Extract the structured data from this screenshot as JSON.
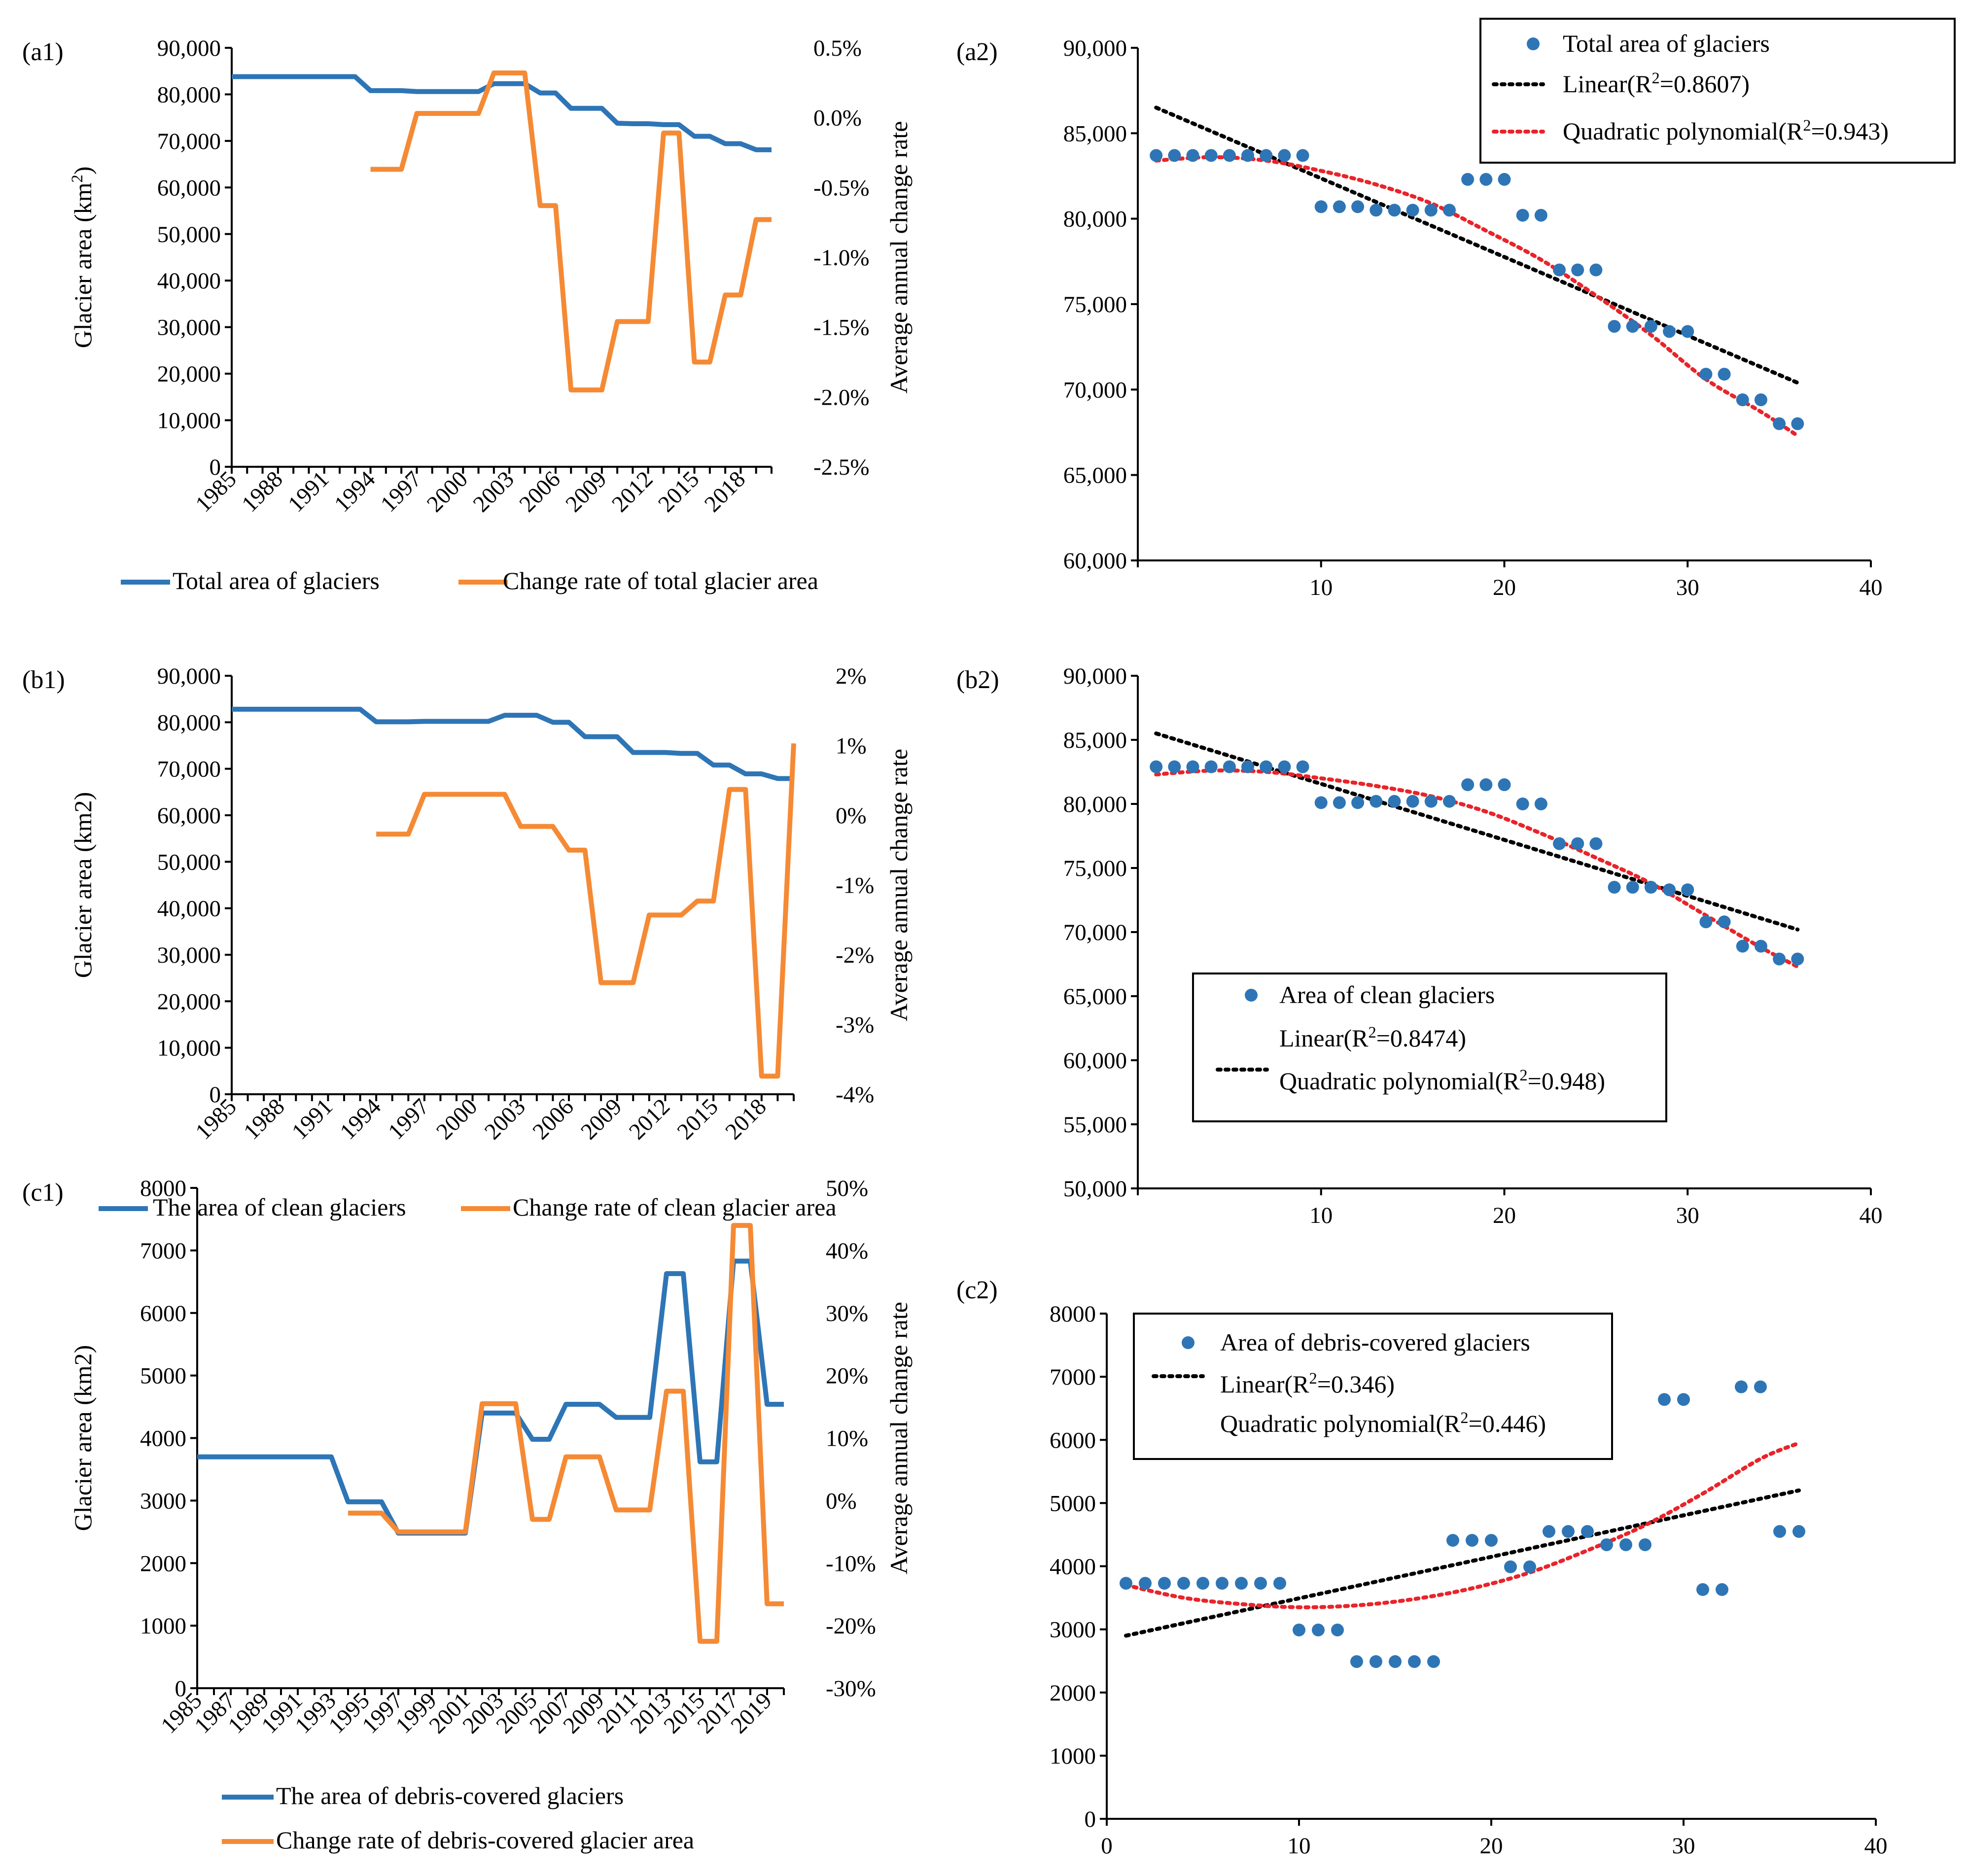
{
  "colors": {
    "blue": "#2e75b6",
    "orange": "#f58a35",
    "red": "#e8242a",
    "black": "#000000",
    "marker": "#2e75b6"
  },
  "chart_data": [
    {
      "id": "a1",
      "type": "line",
      "panel_label": "(a1)",
      "ylabel": "Glacier area (km²)",
      "y2label": "Average annual change rate",
      "ylim": [
        0,
        90000
      ],
      "y2lim": [
        -2.5,
        0.5
      ],
      "yticks": [
        "0",
        "10,000",
        "20,000",
        "30,000",
        "40,000",
        "50,000",
        "60,000",
        "70,000",
        "80,000",
        "90,000"
      ],
      "y2ticks": [
        "-2.5%",
        "-2.0%",
        "-1.5%",
        "-1.0%",
        "-0.5%",
        "0.0%",
        "0.5%"
      ],
      "xlim": [
        1985,
        2020
      ],
      "xticks": [
        "1985",
        "1988",
        "1991",
        "1994",
        "1997",
        "2000",
        "2003",
        "2006",
        "2009",
        "2012",
        "2015",
        "2018"
      ],
      "series": [
        {
          "name": "Total area of glaciers",
          "color": "blue",
          "axis": "y",
          "x": [
            1985,
            1986,
            1987,
            1988,
            1989,
            1990,
            1991,
            1992,
            1993,
            1994,
            1995,
            1996,
            1997,
            1998,
            1999,
            2000,
            2001,
            2002,
            2003,
            2004,
            2005,
            2006,
            2007,
            2008,
            2009,
            2010,
            2011,
            2012,
            2013,
            2014,
            2015,
            2016,
            2017,
            2018,
            2019,
            2020
          ],
          "values": [
            83800,
            83800,
            83800,
            83800,
            83800,
            83800,
            83800,
            83800,
            83800,
            80800,
            80800,
            80800,
            80600,
            80600,
            80600,
            80600,
            80600,
            82300,
            82300,
            82300,
            80300,
            80300,
            77000,
            77000,
            77000,
            73800,
            73700,
            73700,
            73500,
            73500,
            71000,
            71000,
            69400,
            69400,
            68100,
            68100
          ]
        },
        {
          "name": "Change rate of total glacier area",
          "color": "orange",
          "axis": "y2",
          "x": [
            1994,
            1995,
            1996,
            1997,
            1998,
            1999,
            2000,
            2001,
            2002,
            2003,
            2004,
            2005,
            2006,
            2007,
            2008,
            2009,
            2010,
            2011,
            2012,
            2013,
            2014,
            2015,
            2016,
            2017,
            2018,
            2019,
            2020
          ],
          "values": [
            -0.37,
            -0.37,
            -0.37,
            0.03,
            0.03,
            0.03,
            0.03,
            0.03,
            0.32,
            0.32,
            0.32,
            -0.63,
            -0.63,
            -1.95,
            -1.95,
            -1.95,
            -1.46,
            -1.46,
            -1.46,
            -0.11,
            -0.11,
            -1.75,
            -1.75,
            -1.27,
            -1.27,
            -0.73,
            -0.73
          ]
        }
      ],
      "legend": {
        "position": "bottom",
        "items": [
          "Total area of glaciers",
          "Change rate of total glacier area"
        ]
      }
    },
    {
      "id": "a2",
      "type": "scatter",
      "panel_label": "(a2)",
      "ylim": [
        60000,
        90000
      ],
      "yticks": [
        "60,000",
        "65,000",
        "70,000",
        "75,000",
        "80,000",
        "85,000",
        "90,000"
      ],
      "xlim": [
        0,
        40
      ],
      "xticks": [
        "10",
        "20",
        "30",
        "40"
      ],
      "points": {
        "name": "Total area of glaciers",
        "x": [
          1,
          2,
          3,
          4,
          5,
          6,
          7,
          8,
          9,
          10,
          11,
          12,
          13,
          14,
          15,
          16,
          17,
          18,
          19,
          20,
          21,
          22,
          23,
          24,
          25,
          26,
          27,
          28,
          29,
          30,
          31,
          32,
          33,
          34,
          35,
          36
        ],
        "y": [
          83700,
          83700,
          83700,
          83700,
          83700,
          83700,
          83700,
          83700,
          83700,
          80700,
          80700,
          80700,
          80500,
          80500,
          80500,
          80500,
          80500,
          82300,
          82300,
          82300,
          80200,
          80200,
          77000,
          77000,
          77000,
          73700,
          73700,
          73700,
          73400,
          73400,
          70900,
          70900,
          69400,
          69400,
          68000,
          68000
        ]
      },
      "linear": {
        "label": "Linear(R²=0.8607)",
        "x": [
          1,
          36
        ],
        "y": [
          86500,
          70400
        ]
      },
      "quadratic": {
        "label": "Quadratic polynomial(R²=0.943)",
        "x": [
          1,
          4,
          7,
          10,
          13,
          16,
          19,
          22,
          25,
          28,
          31,
          34,
          36
        ],
        "y": [
          83400,
          83600,
          83400,
          82800,
          82000,
          80900,
          79300,
          77600,
          75500,
          73200,
          70600,
          68700,
          67300
        ]
      },
      "legend": {
        "position": "top-right",
        "items": [
          "Total area of glaciers",
          "Linear(R²=0.8607)",
          "Quadratic polynomial(R²=0.943)"
        ]
      }
    },
    {
      "id": "b1",
      "type": "line",
      "panel_label": "(b1)",
      "ylabel": "Glacier area (km2)",
      "y2label": "Average annual change rate",
      "ylim": [
        0,
        90000
      ],
      "y2lim": [
        -4,
        2
      ],
      "yticks": [
        "0",
        "10,000",
        "20,000",
        "30,000",
        "40,000",
        "50,000",
        "60,000",
        "70,000",
        "80,000",
        "90,000"
      ],
      "y2ticks": [
        "-4%",
        "-3%",
        "-2%",
        "-1%",
        "0%",
        "1%",
        "2%"
      ],
      "xlim": [
        1985,
        2020
      ],
      "xticks": [
        "1985",
        "1988",
        "1991",
        "1994",
        "1997",
        "2000",
        "2003",
        "2006",
        "2009",
        "2012",
        "2015",
        "2018"
      ],
      "series": [
        {
          "name": "The area of clean glaciers",
          "color": "blue",
          "axis": "y",
          "x": [
            1985,
            1986,
            1987,
            1988,
            1989,
            1990,
            1991,
            1992,
            1993,
            1994,
            1995,
            1996,
            1997,
            1998,
            1999,
            2000,
            2001,
            2002,
            2003,
            2004,
            2005,
            2006,
            2007,
            2008,
            2009,
            2010,
            2011,
            2012,
            2013,
            2014,
            2015,
            2016,
            2017,
            2018,
            2019,
            2020
          ],
          "values": [
            82800,
            82800,
            82800,
            82800,
            82800,
            82800,
            82800,
            82800,
            82800,
            80100,
            80100,
            80100,
            80200,
            80200,
            80200,
            80200,
            80200,
            81500,
            81500,
            81500,
            80000,
            80000,
            76900,
            76900,
            76900,
            73500,
            73500,
            73500,
            73300,
            73300,
            70800,
            70800,
            68900,
            68900,
            67900,
            67900
          ]
        },
        {
          "name": "Change rate of clean glacier area",
          "color": "orange",
          "axis": "y2",
          "x": [
            1994,
            1995,
            1996,
            1997,
            1998,
            1999,
            2000,
            2001,
            2002,
            2003,
            2004,
            2005,
            2006,
            2007,
            2008,
            2009,
            2010,
            2011,
            2012,
            2013,
            2014,
            2015,
            2016,
            2017,
            2018,
            2019,
            2020
          ],
          "values": [
            -0.27,
            -0.27,
            -0.27,
            0.3,
            0.3,
            0.3,
            0.3,
            0.3,
            0.3,
            -0.16,
            -0.16,
            -0.16,
            -0.5,
            -0.5,
            -2.4,
            -2.4,
            -2.4,
            -1.43,
            -1.43,
            -1.43,
            -1.23,
            -1.23,
            0.37,
            0.37,
            -3.74,
            -3.74,
            1.03
          ]
        }
      ],
      "legend": {
        "position": "bottom",
        "items": [
          "The area of clean glaciers",
          "Change rate of clean glacier area"
        ]
      }
    },
    {
      "id": "b2",
      "type": "scatter",
      "panel_label": "(b2)",
      "ylim": [
        50000,
        90000
      ],
      "yticks": [
        "50,000",
        "55,000",
        "60,000",
        "65,000",
        "70,000",
        "75,000",
        "80,000",
        "85,000",
        "90,000"
      ],
      "xlim": [
        0,
        40
      ],
      "xticks": [
        "10",
        "20",
        "30",
        "40"
      ],
      "points": {
        "name": "Area of clean glaciers",
        "x": [
          1,
          2,
          3,
          4,
          5,
          6,
          7,
          8,
          9,
          10,
          11,
          12,
          13,
          14,
          15,
          16,
          17,
          18,
          19,
          20,
          21,
          22,
          23,
          24,
          25,
          26,
          27,
          28,
          29,
          30,
          31,
          32,
          33,
          34,
          35,
          36
        ],
        "y": [
          82900,
          82900,
          82900,
          82900,
          82900,
          82900,
          82900,
          82900,
          82900,
          80100,
          80100,
          80100,
          80200,
          80200,
          80200,
          80200,
          80200,
          81500,
          81500,
          81500,
          80000,
          80000,
          76900,
          76900,
          76900,
          73500,
          73500,
          73500,
          73300,
          73300,
          70800,
          70800,
          68900,
          68900,
          67900,
          67900
        ]
      },
      "linear": {
        "label": "Linear(R²=0.8474)",
        "x": [
          1,
          36
        ],
        "y": [
          85500,
          70200
        ]
      },
      "quadratic": {
        "label": "Quadratic polynomial(R²=0.948)",
        "x": [
          1,
          4,
          7,
          10,
          13,
          16,
          19,
          22,
          25,
          28,
          31,
          34,
          36
        ],
        "y": [
          82300,
          82600,
          82500,
          82000,
          81400,
          80600,
          79400,
          77700,
          75800,
          73800,
          71300,
          68800,
          67300
        ]
      },
      "legend": {
        "position": "middle-left",
        "items": [
          "Area of clean glaciers",
          "Linear(R²=0.8474)",
          "Quadratic polynomial(R²=0.948)"
        ]
      }
    },
    {
      "id": "c1",
      "type": "line",
      "panel_label": "(c1)",
      "ylabel": "Glacier area (km2)",
      "y2label": "Average annual change rate",
      "ylim": [
        0,
        8000
      ],
      "y2lim": [
        -30,
        50
      ],
      "yticks": [
        "0",
        "1000",
        "2000",
        "3000",
        "4000",
        "5000",
        "6000",
        "7000",
        "8000"
      ],
      "y2ticks": [
        "-30%",
        "-20%",
        "-10%",
        "0%",
        "10%",
        "20%",
        "30%",
        "40%",
        "50%"
      ],
      "xlim": [
        1985,
        2020
      ],
      "xticks": [
        "1985",
        "1987",
        "1989",
        "1991",
        "1993",
        "1995",
        "1997",
        "1999",
        "2001",
        "2003",
        "2005",
        "2007",
        "2009",
        "2011",
        "2013",
        "2015",
        "2017",
        "2019"
      ],
      "series": [
        {
          "name": "The area of debris-covered glaciers",
          "color": "blue",
          "axis": "y",
          "x": [
            1985,
            1986,
            1987,
            1988,
            1989,
            1990,
            1991,
            1992,
            1993,
            1994,
            1995,
            1996,
            1997,
            1998,
            1999,
            2000,
            2001,
            2002,
            2003,
            2004,
            2005,
            2006,
            2007,
            2008,
            2009,
            2010,
            2011,
            2012,
            2013,
            2014,
            2015,
            2016,
            2017,
            2018,
            2019,
            2020
          ],
          "values": [
            3700,
            3700,
            3700,
            3700,
            3700,
            3700,
            3700,
            3700,
            3700,
            2980,
            2980,
            2980,
            2480,
            2480,
            2480,
            2480,
            2480,
            4400,
            4400,
            4400,
            3980,
            3980,
            4540,
            4540,
            4540,
            4330,
            4330,
            4330,
            6630,
            6630,
            3620,
            3620,
            6830,
            6830,
            4540,
            4540
          ]
        },
        {
          "name": "Change rate of debris-covered glacier area",
          "color": "orange",
          "axis": "y2",
          "x": [
            1994,
            1995,
            1996,
            1997,
            1998,
            1999,
            2000,
            2001,
            2002,
            2003,
            2004,
            2005,
            2006,
            2007,
            2008,
            2009,
            2010,
            2011,
            2012,
            2013,
            2014,
            2015,
            2016,
            2017,
            2018,
            2019,
            2020
          ],
          "values": [
            -2,
            -2,
            -2,
            -5,
            -5,
            -5,
            -5,
            -5,
            15.5,
            15.5,
            15.5,
            -3,
            -3,
            7,
            7,
            7,
            -1.5,
            -1.5,
            -1.5,
            17.5,
            17.5,
            -22.5,
            -22.5,
            44,
            44,
            -16.5,
            -16.5
          ]
        }
      ],
      "legend": {
        "position": "bottom",
        "items": [
          "The area of debris-covered glaciers",
          "Change rate of debris-covered glacier area"
        ]
      }
    },
    {
      "id": "c2",
      "type": "scatter",
      "panel_label": "(c2)",
      "ylim": [
        0,
        8000
      ],
      "yticks": [
        "0",
        "1000",
        "2000",
        "3000",
        "4000",
        "5000",
        "6000",
        "7000",
        "8000"
      ],
      "xlim": [
        0,
        40
      ],
      "xticks": [
        "0",
        "10",
        "20",
        "30",
        "40"
      ],
      "points": {
        "name": "Area of debris-covered glaciers",
        "x": [
          1,
          2,
          3,
          4,
          5,
          6,
          7,
          8,
          9,
          10,
          11,
          12,
          13,
          14,
          15,
          16,
          17,
          18,
          19,
          20,
          21,
          22,
          23,
          24,
          25,
          26,
          27,
          28,
          29,
          30,
          31,
          32,
          33,
          34,
          35,
          36
        ],
        "y": [
          3730,
          3730,
          3730,
          3730,
          3730,
          3730,
          3730,
          3730,
          3730,
          2990,
          2990,
          2990,
          2490,
          2490,
          2490,
          2490,
          2490,
          4410,
          4410,
          4410,
          3990,
          3990,
          4550,
          4550,
          4550,
          4340,
          4340,
          4340,
          6640,
          6640,
          3630,
          3630,
          6840,
          6840,
          4550,
          4550
        ]
      },
      "linear": {
        "label": "Linear(R²=0.346)",
        "x": [
          1,
          36
        ],
        "y": [
          2900,
          5200
        ]
      },
      "quadratic": {
        "label": "Quadratic polynomial(R²=0.446)",
        "x": [
          1,
          4,
          7,
          10,
          13,
          16,
          19,
          22,
          25,
          28,
          31,
          34,
          36
        ],
        "y": [
          3700,
          3500,
          3400,
          3350,
          3380,
          3480,
          3650,
          3900,
          4250,
          4650,
          5150,
          5700,
          5950
        ]
      },
      "legend": {
        "position": "top-left",
        "items": [
          "Area of debris-covered glaciers",
          "Linear(R²=0.346)",
          "Quadratic polynomial(R²=0.446)"
        ]
      }
    }
  ]
}
